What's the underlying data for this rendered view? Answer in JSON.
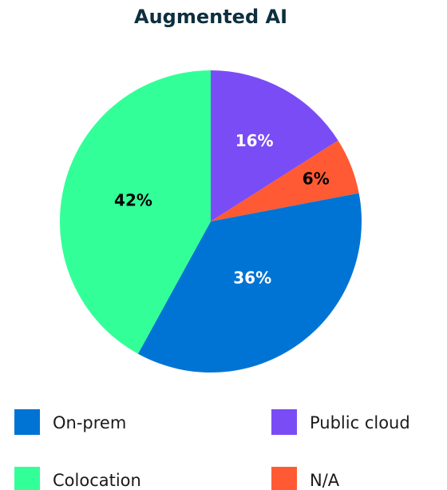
{
  "chart_data": {
    "type": "pie",
    "title": "Augmented AI",
    "categories": [
      "Public cloud",
      "N/A",
      "On-prem",
      "Colocation"
    ],
    "values": [
      16,
      6,
      36,
      42
    ],
    "value_labels": [
      "16%",
      "6%",
      "36%",
      "42%"
    ],
    "colors": [
      "#7a4cf6",
      "#ff5a33",
      "#0074d4",
      "#33ff99"
    ],
    "label_colors": [
      "#ffffff",
      "#000000",
      "#ffffff",
      "#000000"
    ]
  }
}
